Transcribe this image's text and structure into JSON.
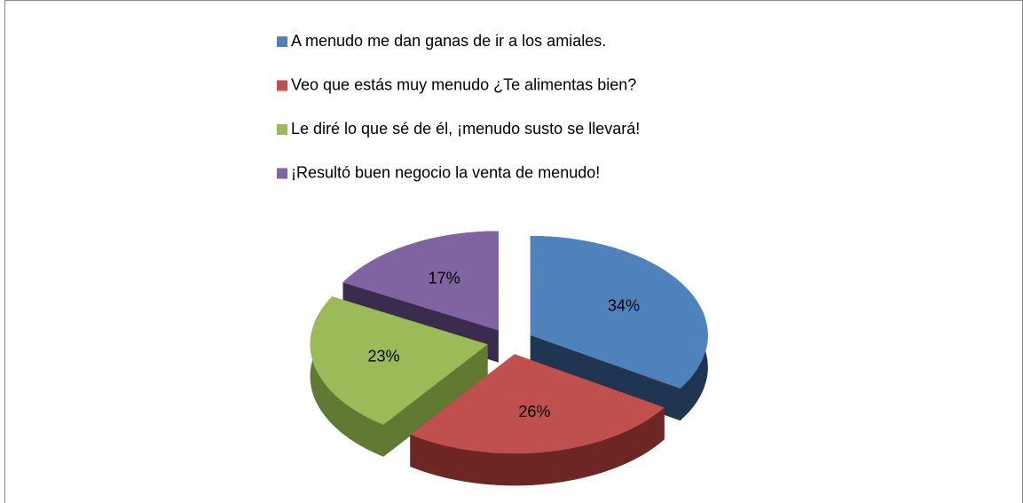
{
  "chart_data": {
    "type": "pie",
    "categories": [
      "A menudo me dan ganas de ir a los amiales.",
      "Veo que estás muy menudo ¿Te alimentas bien?",
      "Le diré lo que sé de él, ¡menudo susto se llevará!",
      "¡Resultó buen negocio la venta de menudo!"
    ],
    "values": [
      34,
      26,
      23,
      17
    ],
    "value_labels": [
      "34%",
      "26%",
      "23%",
      "17%"
    ],
    "colors": [
      "#4f81bd",
      "#c0504d",
      "#9bbb59",
      "#8064a2"
    ],
    "side_colors": [
      "#1f3552",
      "#6e2624",
      "#617a31",
      "#3a2c4c"
    ],
    "legend": "top"
  }
}
